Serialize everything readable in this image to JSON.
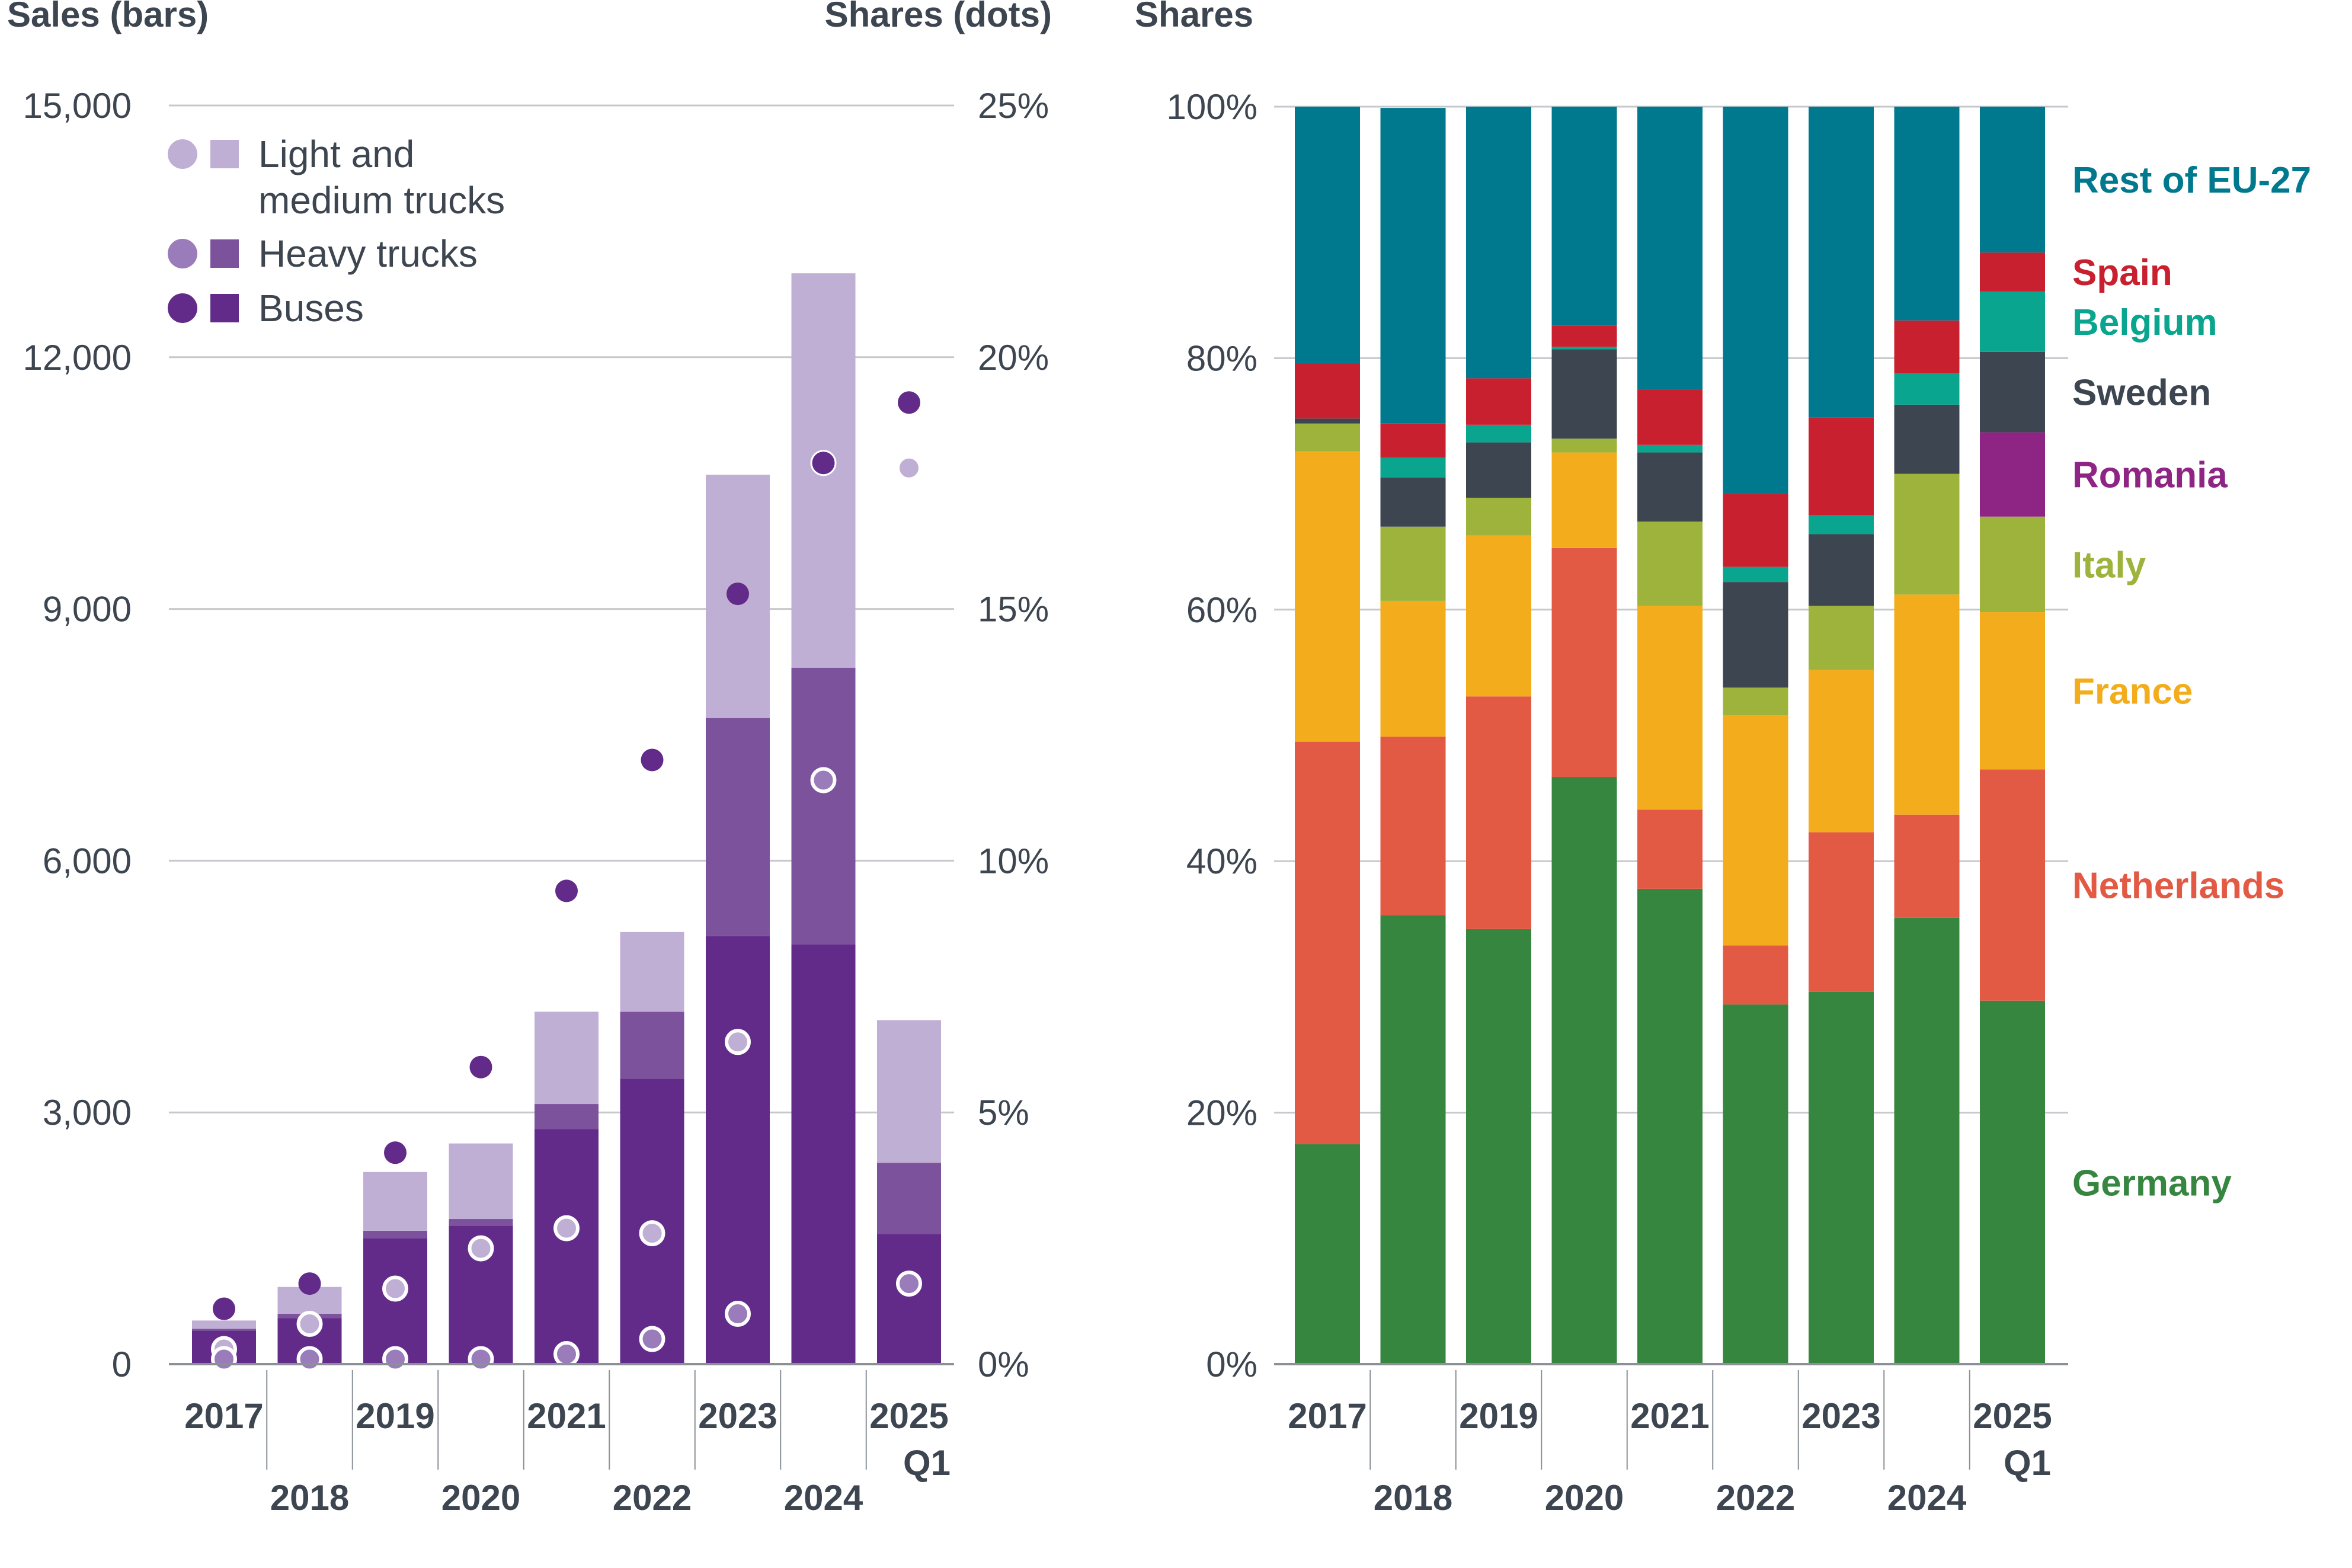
{
  "chart_data": [
    {
      "type": "bar",
      "stacked": true,
      "categories": [
        "2017",
        "2018",
        "2019",
        "2020",
        "2021",
        "2022",
        "2023",
        "2024",
        "2025"
      ],
      "category_sublabels": [
        "",
        "",
        "",
        "",
        "",
        "",
        "",
        "",
        "Q1"
      ],
      "left_axis_title": "Sales (bars)",
      "right_axis_title": "Shares (dots)",
      "left_ticks": [
        "0",
        "3,000",
        "6,000",
        "9,000",
        "12,000",
        "15,000"
      ],
      "right_ticks": [
        "0%",
        "5%",
        "10%",
        "15%",
        "20%",
        "25%"
      ],
      "ylim_sales": [
        0,
        15000
      ],
      "ylim_share": [
        0,
        25
      ],
      "series": [
        {
          "name": "Buses",
          "color": "#622a89",
          "sales": [
            400,
            550,
            1500,
            1650,
            2800,
            3400,
            5100,
            5000,
            1550
          ],
          "share_pct": [
            1.1,
            1.6,
            4.2,
            5.9,
            9.4,
            12.0,
            15.3,
            17.9,
            19.1
          ]
        },
        {
          "name": "Heavy trucks",
          "color": "#7d529d",
          "sales": [
            20,
            50,
            90,
            80,
            300,
            800,
            2600,
            3300,
            850
          ],
          "share_pct": [
            0.1,
            0.1,
            0.1,
            0.1,
            0.2,
            0.5,
            1.0,
            11.6,
            1.6
          ]
        },
        {
          "name": "Light and medium trucks",
          "color": "#c0afd4",
          "sales": [
            100,
            320,
            700,
            900,
            1100,
            950,
            2900,
            4700,
            1700
          ],
          "share_pct": [
            0.3,
            0.8,
            1.5,
            2.3,
            2.7,
            2.6,
            6.4,
            17.9,
            17.8
          ]
        }
      ],
      "legend": [
        "Light and medium trucks",
        "Heavy trucks",
        "Buses"
      ],
      "legend_lines": {
        "light": [
          "Light and",
          "medium trucks"
        ],
        "heavy": "Heavy trucks",
        "buses": "Buses"
      }
    },
    {
      "type": "bar",
      "stacked": true,
      "percent": true,
      "title": "Shares",
      "categories": [
        "2017",
        "2018",
        "2019",
        "2020",
        "2021",
        "2022",
        "2023",
        "2024",
        "2025"
      ],
      "category_sublabels": [
        "",
        "",
        "",
        "",
        "",
        "",
        "",
        "",
        "Q1"
      ],
      "y_ticks": [
        "0%",
        "20%",
        "40%",
        "60%",
        "80%",
        "100%"
      ],
      "ylim": [
        0,
        100
      ],
      "series": [
        {
          "name": "Germany",
          "color": "#368640",
          "values": [
            17.5,
            35.7,
            34.6,
            46.7,
            37.8,
            28.6,
            29.6,
            35.5,
            28.9
          ]
        },
        {
          "name": "Netherlands",
          "color": "#e35a44",
          "values": [
            32.0,
            14.2,
            18.5,
            18.2,
            6.3,
            4.7,
            12.7,
            8.2,
            18.4
          ]
        },
        {
          "name": "France",
          "color": "#f3ad1c",
          "values": [
            23.1,
            10.8,
            12.8,
            7.6,
            16.2,
            18.3,
            12.9,
            17.5,
            12.5
          ]
        },
        {
          "name": "Italy",
          "color": "#9eb33b",
          "values": [
            2.2,
            5.9,
            3.0,
            1.1,
            6.7,
            2.2,
            5.1,
            9.6,
            7.6
          ]
        },
        {
          "name": "Romania",
          "color": "#8e2584",
          "values": [
            0,
            0,
            0,
            0,
            0,
            0,
            0,
            0,
            6.7
          ]
        },
        {
          "name": "Sweden",
          "color": "#3d4650",
          "values": [
            0.4,
            3.9,
            4.4,
            7.1,
            5.5,
            8.4,
            5.7,
            5.5,
            6.4
          ]
        },
        {
          "name": "Belgium",
          "color": "#0aa58e",
          "values": [
            0,
            1.6,
            1.4,
            0.2,
            0.6,
            1.2,
            1.5,
            2.5,
            4.8
          ]
        },
        {
          "name": "Spain",
          "color": "#c8202f",
          "values": [
            4.4,
            2.7,
            3.7,
            1.7,
            4.4,
            5.8,
            7.8,
            4.2,
            3.1
          ]
        },
        {
          "name": "Rest of EU-27",
          "color": "#00798f",
          "values": [
            20.4,
            25.1,
            21.6,
            17.4,
            22.5,
            30.8,
            24.7,
            17.0,
            11.6
          ]
        }
      ]
    }
  ]
}
